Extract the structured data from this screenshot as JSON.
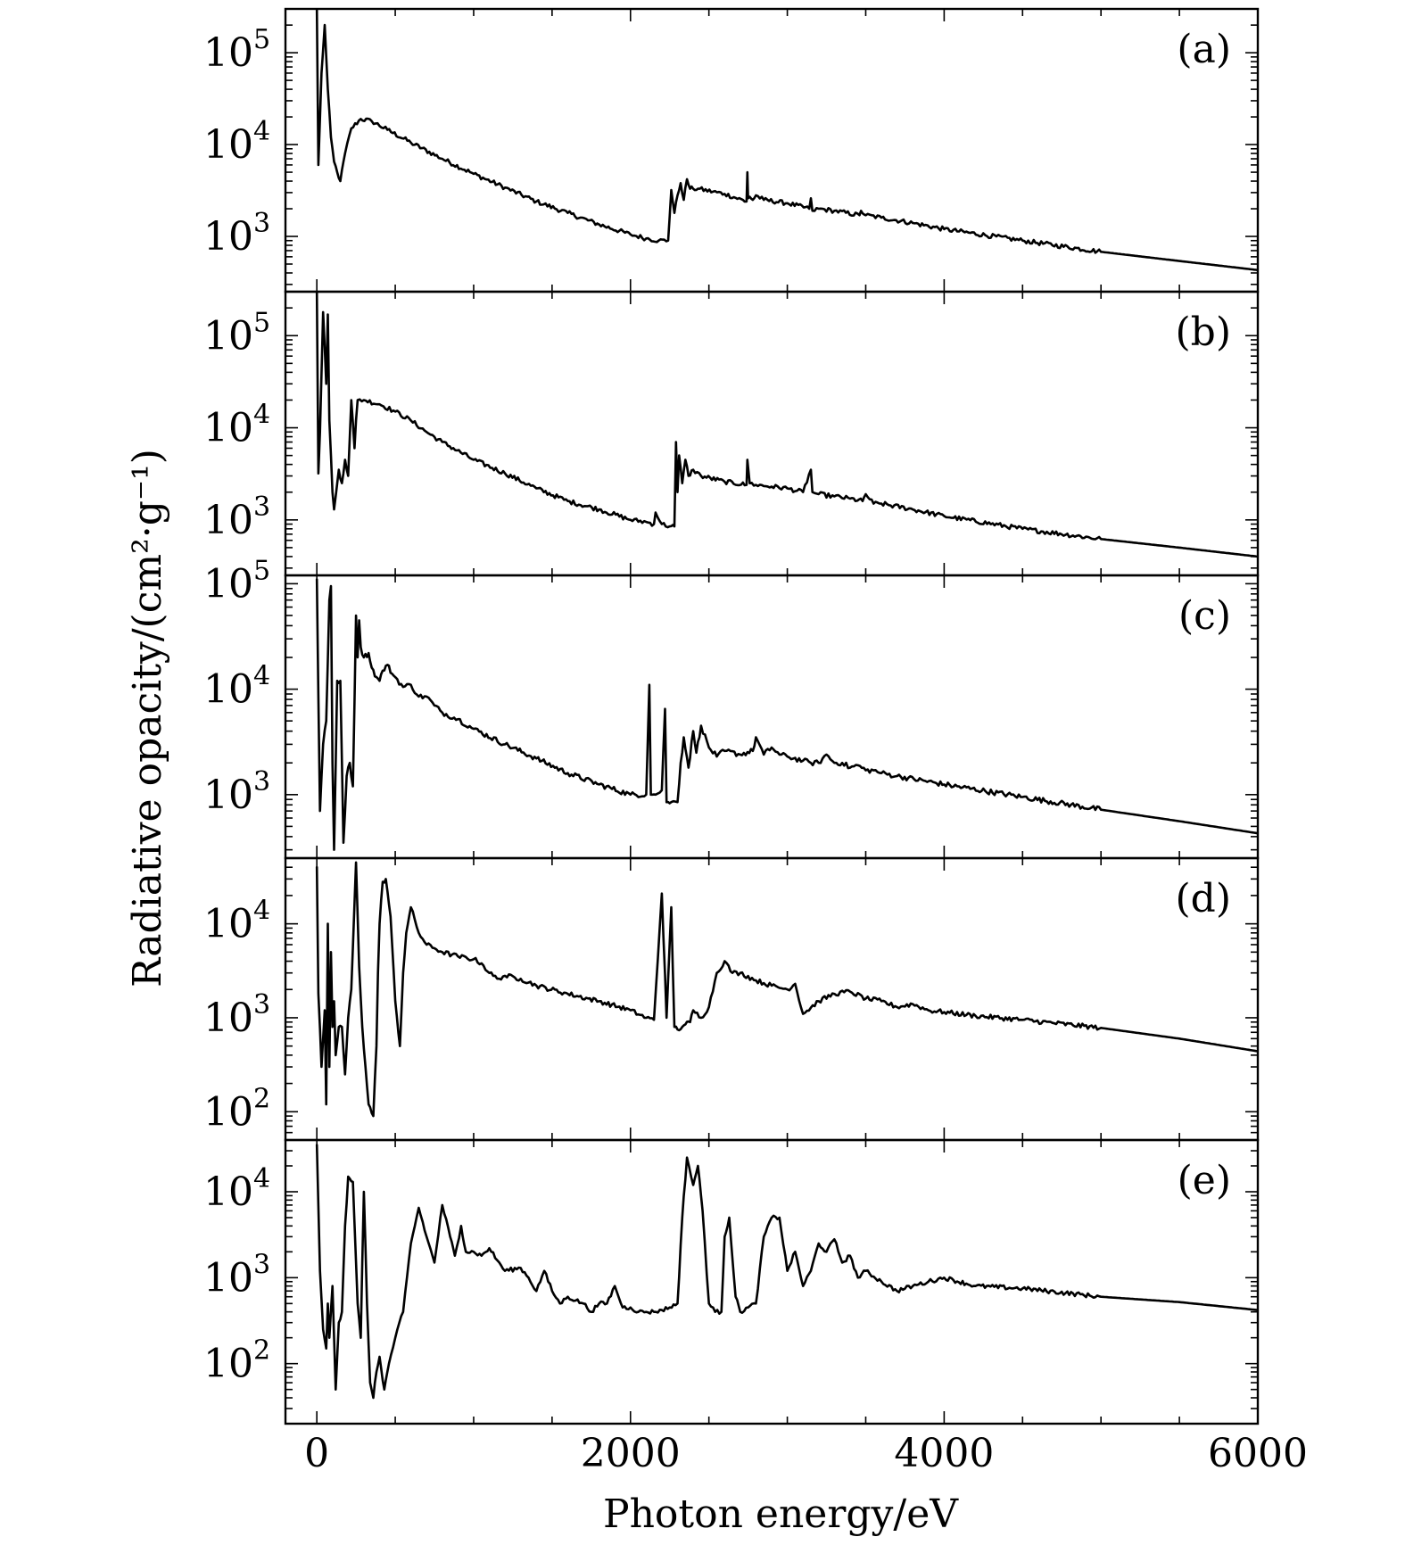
{
  "chart_data": {
    "type": "line",
    "xlabel": "Photon energy/eV",
    "ylabel": "Radiative opacity/(cm²·g⁻¹)",
    "xlim": [
      -200,
      6000
    ],
    "x_ticks": [
      "0",
      "2000",
      "4000",
      "6000"
    ],
    "x_scale": "linear",
    "y_scale": "log",
    "shared_x": true,
    "grid": false,
    "panels": [
      {
        "label": "(a)",
        "ylim": [
          250,
          300000
        ],
        "y_ticks": [
          {
            "value": 1000,
            "base": "10",
            "exp": "3"
          },
          {
            "value": 10000,
            "base": "10",
            "exp": "4"
          },
          {
            "value": 100000,
            "base": "10",
            "exp": "5"
          }
        ],
        "series": [
          {
            "x": [
              0,
              10,
              30,
              50,
              70,
              90,
              110,
              130,
              150,
              180,
              220,
              280,
              350,
              450,
              600,
              800,
              1000,
              1200,
              1400,
              1600,
              1800,
              2000,
              2100,
              2180,
              2240,
              2260,
              2280,
              2300,
              2320,
              2340,
              2360,
              2380,
              2400,
              2430,
              2600,
              2740,
              2745,
              2750,
              2760,
              2780,
              2800,
              2850,
              3000,
              3140,
              3150,
              3160,
              3200,
              3300,
              3460,
              3470,
              3500,
              3600,
              3800,
              4000,
              4500,
              5000,
              5500,
              6000
            ],
            "y": [
              300000,
              6000,
              60000,
              200000,
              40000,
              12000,
              6500,
              5000,
              4000,
              8000,
              15000,
              19000,
              18000,
              14500,
              10500,
              7000,
              4800,
              3400,
              2400,
              1800,
              1350,
              1050,
              950,
              900,
              900,
              3200,
              1800,
              2800,
              3800,
              2500,
              4200,
              3300,
              3300,
              3300,
              2900,
              2400,
              5000,
              2600,
              2700,
              2500,
              2800,
              2500,
              2300,
              2000,
              2600,
              1900,
              2000,
              1900,
              1700,
              1900,
              1700,
              1600,
              1400,
              1200,
              900,
              680,
              540,
              430
            ]
          }
        ]
      },
      {
        "label": "(b)",
        "ylim": [
          250,
          300000
        ],
        "y_ticks": [
          {
            "value": 1000,
            "base": "10",
            "exp": "3"
          },
          {
            "value": 10000,
            "base": "10",
            "exp": "4"
          },
          {
            "value": 100000,
            "base": "10",
            "exp": "5"
          }
        ],
        "series": [
          {
            "x": [
              0,
              10,
              20,
              40,
              60,
              70,
              80,
              100,
              110,
              120,
              140,
              160,
              180,
              200,
              220,
              240,
              250,
              260,
              300,
              400,
              500,
              600,
              700,
              800,
              1000,
              1200,
              1400,
              1600,
              1800,
              2000,
              2100,
              2150,
              2160,
              2200,
              2250,
              2280,
              2290,
              2300,
              2310,
              2330,
              2350,
              2370,
              2400,
              2450,
              2600,
              2740,
              2745,
              2760,
              2800,
              2900,
              3000,
              3100,
              3150,
              3160,
              3200,
              3300,
              3400,
              3480,
              3500,
              3550,
              3600,
              3800,
              4000,
              4500,
              5000,
              5500,
              6000
            ],
            "y": [
              300000,
              3200,
              9000,
              180000,
              30000,
              170000,
              12000,
              2000,
              1300,
              1800,
              3500,
              2500,
              4500,
              3000,
              20000,
              6000,
              12000,
              20000,
              20000,
              18000,
              15000,
              12000,
              9000,
              7000,
              4500,
              3200,
              2200,
              1600,
              1300,
              1000,
              950,
              900,
              1200,
              900,
              850,
              850,
              7000,
              2000,
              5000,
              2500,
              4500,
              3000,
              3500,
              3000,
              2600,
              2400,
              4500,
              2500,
              2400,
              2300,
              2200,
              2000,
              3500,
              2000,
              1900,
              1800,
              1700,
              1600,
              1900,
              1500,
              1500,
              1300,
              1100,
              800,
              620,
              500,
              400
            ]
          }
        ]
      },
      {
        "label": "(c)",
        "ylim": [
          250,
          120000
        ],
        "y_ticks": [
          {
            "value": 1000,
            "base": "10",
            "exp": "3"
          },
          {
            "value": 10000,
            "base": "10",
            "exp": "4"
          },
          {
            "value": 100000,
            "base": "10",
            "exp": "5"
          }
        ],
        "series": [
          {
            "x": [
              0,
              20,
              40,
              60,
              80,
              90,
              100,
              110,
              130,
              150,
              170,
              190,
              210,
              230,
              250,
              260,
              270,
              280,
              300,
              330,
              350,
              380,
              400,
              420,
              450,
              480,
              500,
              550,
              600,
              650,
              700,
              750,
              800,
              900,
              1000,
              1200,
              1400,
              1600,
              1800,
              2000,
              2100,
              2120,
              2130,
              2140,
              2160,
              2200,
              2220,
              2230,
              2240,
              2260,
              2300,
              2320,
              2340,
              2370,
              2400,
              2420,
              2450,
              2500,
              2550,
              2600,
              2700,
              2780,
              2800,
              2850,
              2900,
              2950,
              3000,
              3100,
              3150,
              3200,
              3250,
              3300,
              3350,
              3400,
              3450,
              3500,
              3550,
              3600,
              3700,
              4000,
              4500,
              5000,
              5500,
              6000
            ],
            "y": [
              110000,
              700,
              3000,
              5000,
              70000,
              95000,
              2000,
              300,
              12000,
              12000,
              350,
              1500,
              2000,
              1200,
              50000,
              20000,
              45000,
              25000,
              20000,
              22000,
              16000,
              13000,
              12000,
              15000,
              17000,
              14000,
              13000,
              10500,
              11000,
              8500,
              8500,
              7000,
              6000,
              5200,
              4200,
              3000,
              2200,
              1600,
              1250,
              1000,
              1000,
              11000,
              1000,
              1000,
              1000,
              1100,
              6500,
              850,
              850,
              850,
              850,
              2000,
              3500,
              1800,
              4000,
              2500,
              4500,
              2800,
              2300,
              2600,
              2400,
              2600,
              3500,
              2400,
              2800,
              2400,
              2300,
              2100,
              2000,
              2000,
              2400,
              2000,
              2000,
              1800,
              1900,
              1700,
              1700,
              1600,
              1500,
              1250,
              950,
              720,
              560,
              430
            ]
          }
        ]
      },
      {
        "label": "(d)",
        "ylim": [
          50,
          50000
        ],
        "y_ticks": [
          {
            "value": 100,
            "base": "10",
            "exp": "2"
          },
          {
            "value": 1000,
            "base": "10",
            "exp": "3"
          },
          {
            "value": 10000,
            "base": "10",
            "exp": "4"
          }
        ],
        "series": [
          {
            "x": [
              0,
              10,
              30,
              50,
              60,
              70,
              80,
              90,
              100,
              110,
              120,
              140,
              160,
              180,
              200,
              220,
              250,
              270,
              290,
              310,
              330,
              360,
              380,
              390,
              400,
              420,
              440,
              470,
              500,
              530,
              550,
              570,
              600,
              650,
              700,
              750,
              800,
              900,
              1000,
              1050,
              1100,
              1150,
              1200,
              1300,
              1400,
              1600,
              1800,
              2000,
              2100,
              2150,
              2200,
              2230,
              2260,
              2280,
              2300,
              2330,
              2350,
              2380,
              2400,
              2450,
              2500,
              2550,
              2600,
              2650,
              2700,
              2800,
              2900,
              3000,
              3050,
              3100,
              3200,
              3300,
              3400,
              3500,
              3600,
              3700,
              3800,
              3900,
              4000,
              4200,
              4500,
              5000,
              5500,
              6000
            ],
            "y": [
              40000,
              1800,
              300,
              1200,
              120,
              10000,
              300,
              5000,
              800,
              1500,
              400,
              800,
              800,
              250,
              1000,
              2000,
              45000,
              3500,
              800,
              300,
              120,
              90,
              500,
              3000,
              10000,
              28000,
              30000,
              12000,
              1500,
              500,
              3000,
              8000,
              15000,
              8000,
              6000,
              5500,
              5000,
              4500,
              4200,
              3800,
              3000,
              2600,
              2800,
              2600,
              2200,
              1800,
              1500,
              1200,
              1000,
              950,
              21000,
              1000,
              15000,
              800,
              750,
              800,
              850,
              900,
              1200,
              1000,
              1300,
              3000,
              4000,
              3000,
              3000,
              2500,
              2200,
              2000,
              2300,
              1100,
              1500,
              1800,
              1900,
              1600,
              1500,
              1300,
              1400,
              1200,
              1150,
              1050,
              950,
              780,
              600,
              440
            ]
          }
        ]
      },
      {
        "label": "(e)",
        "ylim": [
          20,
          40000
        ],
        "y_ticks": [
          {
            "value": 100,
            "base": "10",
            "exp": "2"
          },
          {
            "value": 1000,
            "base": "10",
            "exp": "3"
          },
          {
            "value": 10000,
            "base": "10",
            "exp": "4"
          }
        ],
        "series": [
          {
            "x": [
              0,
              20,
              40,
              60,
              70,
              80,
              100,
              120,
              140,
              160,
              180,
              200,
              230,
              260,
              280,
              300,
              320,
              340,
              360,
              380,
              400,
              430,
              460,
              500,
              550,
              600,
              650,
              700,
              750,
              800,
              850,
              880,
              920,
              950,
              1000,
              1050,
              1100,
              1150,
              1200,
              1300,
              1350,
              1400,
              1450,
              1500,
              1550,
              1600,
              1700,
              1750,
              1800,
              1850,
              1900,
              1950,
              2000,
              2050,
              2100,
              2150,
              2200,
              2250,
              2300,
              2330,
              2360,
              2400,
              2430,
              2460,
              2500,
              2540,
              2580,
              2600,
              2630,
              2670,
              2700,
              2750,
              2800,
              2850,
              2900,
              2950,
              3000,
              3050,
              3100,
              3150,
              3200,
              3250,
              3300,
              3350,
              3400,
              3450,
              3500,
              3600,
              3700,
              3800,
              3900,
              4000,
              4200,
              4500,
              5000,
              5500,
              6000
            ],
            "y": [
              35000,
              1200,
              250,
              150,
              500,
              200,
              800,
              50,
              300,
              400,
              4000,
              15000,
              13000,
              500,
              200,
              10000,
              500,
              60,
              40,
              80,
              120,
              50,
              100,
              200,
              400,
              2500,
              6500,
              3000,
              1500,
              7000,
              3000,
              1800,
              4000,
              2000,
              2000,
              1800,
              2200,
              1600,
              1200,
              1300,
              1000,
              700,
              1200,
              700,
              500,
              600,
              500,
              400,
              500,
              500,
              800,
              450,
              450,
              400,
              400,
              400,
              420,
              450,
              500,
              5000,
              25000,
              12000,
              20000,
              6000,
              500,
              400,
              400,
              3000,
              5000,
              600,
              400,
              450,
              500,
              3000,
              5000,
              5000,
              1200,
              2000,
              800,
              1200,
              2500,
              2000,
              2800,
              1500,
              1800,
              1000,
              1200,
              900,
              700,
              800,
              900,
              1000,
              800,
              750,
              600,
              520,
              420
            ]
          }
        ]
      }
    ]
  }
}
